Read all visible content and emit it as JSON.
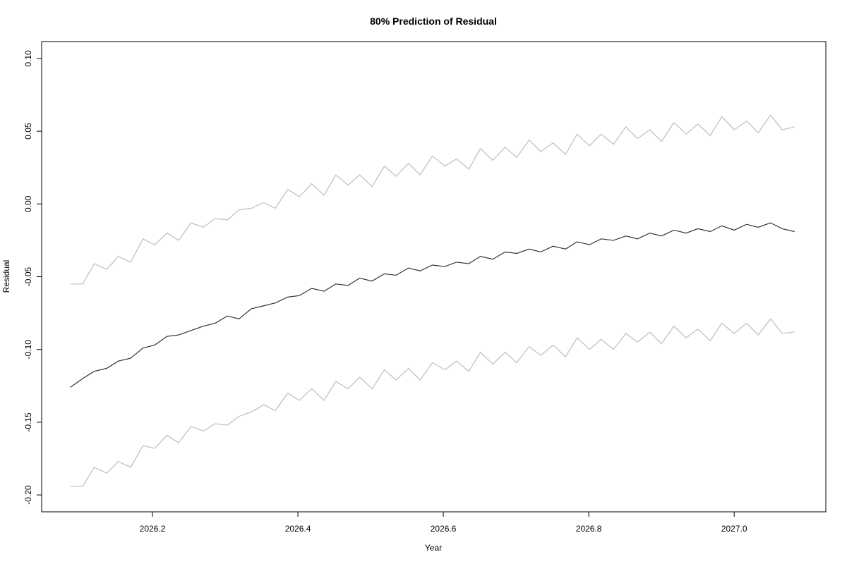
{
  "chart_data": {
    "type": "line",
    "title": "80% Prediction of Residual",
    "x_label": "Year",
    "y_label": "Residual",
    "x": [
      2026.087,
      2026.104,
      2026.12,
      2026.137,
      2026.153,
      2026.17,
      2026.187,
      2026.203,
      2026.22,
      2026.236,
      2026.253,
      2026.27,
      2026.286,
      2026.303,
      2026.319,
      2026.336,
      2026.353,
      2026.369,
      2026.386,
      2026.402,
      2026.419,
      2026.436,
      2026.452,
      2026.469,
      2026.485,
      2026.502,
      2026.519,
      2026.535,
      2026.552,
      2026.568,
      2026.585,
      2026.602,
      2026.618,
      2026.635,
      2026.651,
      2026.668,
      2026.685,
      2026.701,
      2026.718,
      2026.734,
      2026.751,
      2026.768,
      2026.784,
      2026.801,
      2026.817,
      2026.834,
      2026.851,
      2026.867,
      2026.884,
      2026.9,
      2026.917,
      2026.934,
      2026.95,
      2026.967,
      2026.983,
      2027.0,
      2027.017,
      2027.033,
      2027.05,
      2027.066,
      2027.083
    ],
    "series": [
      {
        "color": "#bdbdbd",
        "values": [
          -0.055,
          -0.055,
          -0.041,
          -0.045,
          -0.036,
          -0.04,
          -0.024,
          -0.028,
          -0.02,
          -0.025,
          -0.013,
          -0.016,
          -0.01,
          -0.011,
          -0.004,
          -0.003,
          0.001,
          -0.003,
          0.01,
          0.005,
          0.014,
          0.006,
          0.02,
          0.013,
          0.02,
          0.012,
          0.026,
          0.019,
          0.028,
          0.02,
          0.033,
          0.026,
          0.031,
          0.024,
          0.038,
          0.03,
          0.039,
          0.032,
          0.044,
          0.036,
          0.042,
          0.034,
          0.048,
          0.04,
          0.048,
          0.041,
          0.053,
          0.045,
          0.051,
          0.043,
          0.056,
          0.048,
          0.055,
          0.047,
          0.06,
          0.051,
          0.057,
          0.049,
          0.061,
          0.051,
          0.053
        ]
      },
      {
        "color": "#333333",
        "values": [
          -0.126,
          -0.12,
          -0.115,
          -0.113,
          -0.108,
          -0.106,
          -0.099,
          -0.097,
          -0.091,
          -0.09,
          -0.087,
          -0.084,
          -0.082,
          -0.077,
          -0.079,
          -0.072,
          -0.07,
          -0.068,
          -0.064,
          -0.063,
          -0.058,
          -0.06,
          -0.055,
          -0.056,
          -0.051,
          -0.053,
          -0.048,
          -0.049,
          -0.044,
          -0.046,
          -0.042,
          -0.043,
          -0.04,
          -0.041,
          -0.036,
          -0.038,
          -0.033,
          -0.034,
          -0.031,
          -0.033,
          -0.029,
          -0.031,
          -0.026,
          -0.028,
          -0.024,
          -0.025,
          -0.022,
          -0.024,
          -0.02,
          -0.022,
          -0.018,
          -0.02,
          -0.017,
          -0.019,
          -0.015,
          -0.018,
          -0.014,
          -0.016,
          -0.013,
          -0.017,
          -0.019
        ]
      },
      {
        "color": "#bdbdbd",
        "values": [
          -0.194,
          -0.194,
          -0.181,
          -0.185,
          -0.177,
          -0.181,
          -0.166,
          -0.168,
          -0.159,
          -0.164,
          -0.153,
          -0.156,
          -0.151,
          -0.152,
          -0.146,
          -0.143,
          -0.138,
          -0.142,
          -0.13,
          -0.135,
          -0.127,
          -0.135,
          -0.122,
          -0.127,
          -0.119,
          -0.127,
          -0.114,
          -0.121,
          -0.113,
          -0.121,
          -0.109,
          -0.114,
          -0.108,
          -0.115,
          -0.102,
          -0.11,
          -0.102,
          -0.109,
          -0.098,
          -0.104,
          -0.097,
          -0.105,
          -0.092,
          -0.1,
          -0.093,
          -0.1,
          -0.089,
          -0.095,
          -0.088,
          -0.096,
          -0.084,
          -0.092,
          -0.086,
          -0.094,
          -0.082,
          -0.089,
          -0.082,
          -0.09,
          -0.079,
          -0.089,
          -0.088
        ]
      }
    ],
    "xlim": [
      2026.0476,
      2027.126
    ],
    "ylim": [
      -0.2116,
      0.1116
    ],
    "xticks": [
      2026.2,
      2026.4,
      2026.6,
      2026.8,
      {
        "value": 2027.0,
        "label": "2027.0"
      }
    ],
    "yticks": [
      {
        "value": -0.2,
        "label": "-0.20"
      },
      -0.15,
      {
        "value": -0.1,
        "label": "-0.10"
      },
      -0.05,
      {
        "value": 0,
        "label": "0.00"
      },
      0.05,
      {
        "value": 0.1,
        "label": "0.10"
      }
    ]
  }
}
